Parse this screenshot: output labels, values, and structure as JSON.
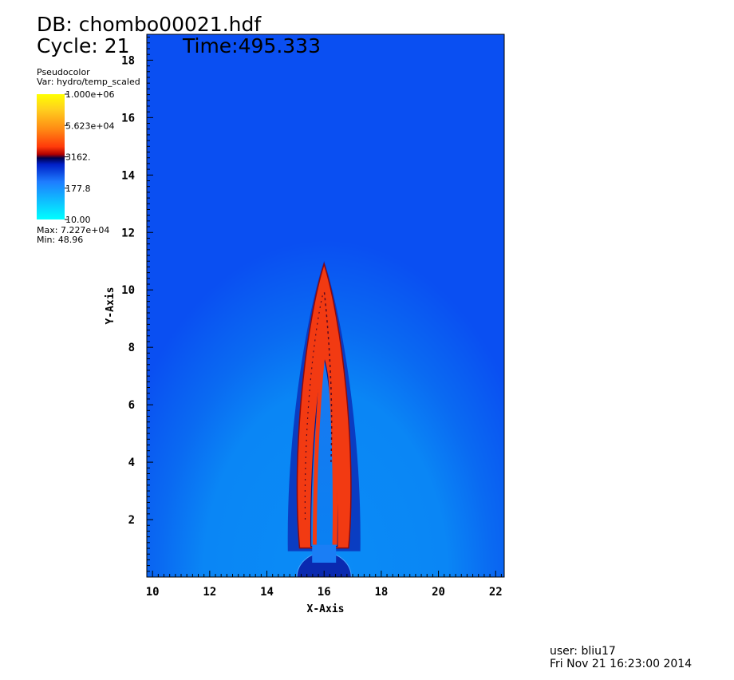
{
  "header": {
    "db_label": "DB: chombo00021.hdf",
    "cycle_label": "Cycle: 21",
    "time_label": "Time:495.333"
  },
  "legend": {
    "plot_type": "Pseudocolor",
    "var_label": "Var: hydro/temp_scaled",
    "ticks": [
      "1.000e+06",
      "5.623e+04",
      "3162.",
      "177.8",
      "10.00"
    ],
    "max_label": "Max:  7.227e+04",
    "min_label": "Min:  48.96"
  },
  "footer": {
    "user": "user: bliu17",
    "datetime": "Fri Nov 21 16:23:00 2014"
  },
  "colors": {
    "background_blue": "#0a4ff2",
    "lower_blue": "#0a86f5",
    "jet_red": "#f23a12",
    "jet_edge": "#8a0a10",
    "colorbar_stops": [
      "#00ffff",
      "#1e7dff",
      "#001fc8",
      "#00004a",
      "#b00000",
      "#ff3a0a",
      "#ff8a14",
      "#ffd01e",
      "#ffff00"
    ]
  },
  "chart_data": {
    "type": "heatmap",
    "title": "",
    "xlabel": "X-Axis",
    "ylabel": "Y-Axis",
    "xlim": [
      9.8,
      22.3
    ],
    "ylim": [
      0,
      18.9
    ],
    "x_ticks": [
      10,
      12,
      14,
      16,
      18,
      20,
      22
    ],
    "y_ticks": [
      2,
      4,
      6,
      8,
      10,
      12,
      14,
      16,
      18
    ],
    "colorbar": {
      "scale": "log",
      "range": [
        10,
        1000000
      ],
      "tick_values": [
        1000000,
        56230,
        3162,
        177.8,
        10
      ],
      "data_max": 72270,
      "data_min": 48.96
    },
    "features": {
      "jet_axis_x": 16.0,
      "jet_tip_y": 10.9,
      "jet_half_width_max": 1.1,
      "nozzle_radius": 0.95
    }
  }
}
